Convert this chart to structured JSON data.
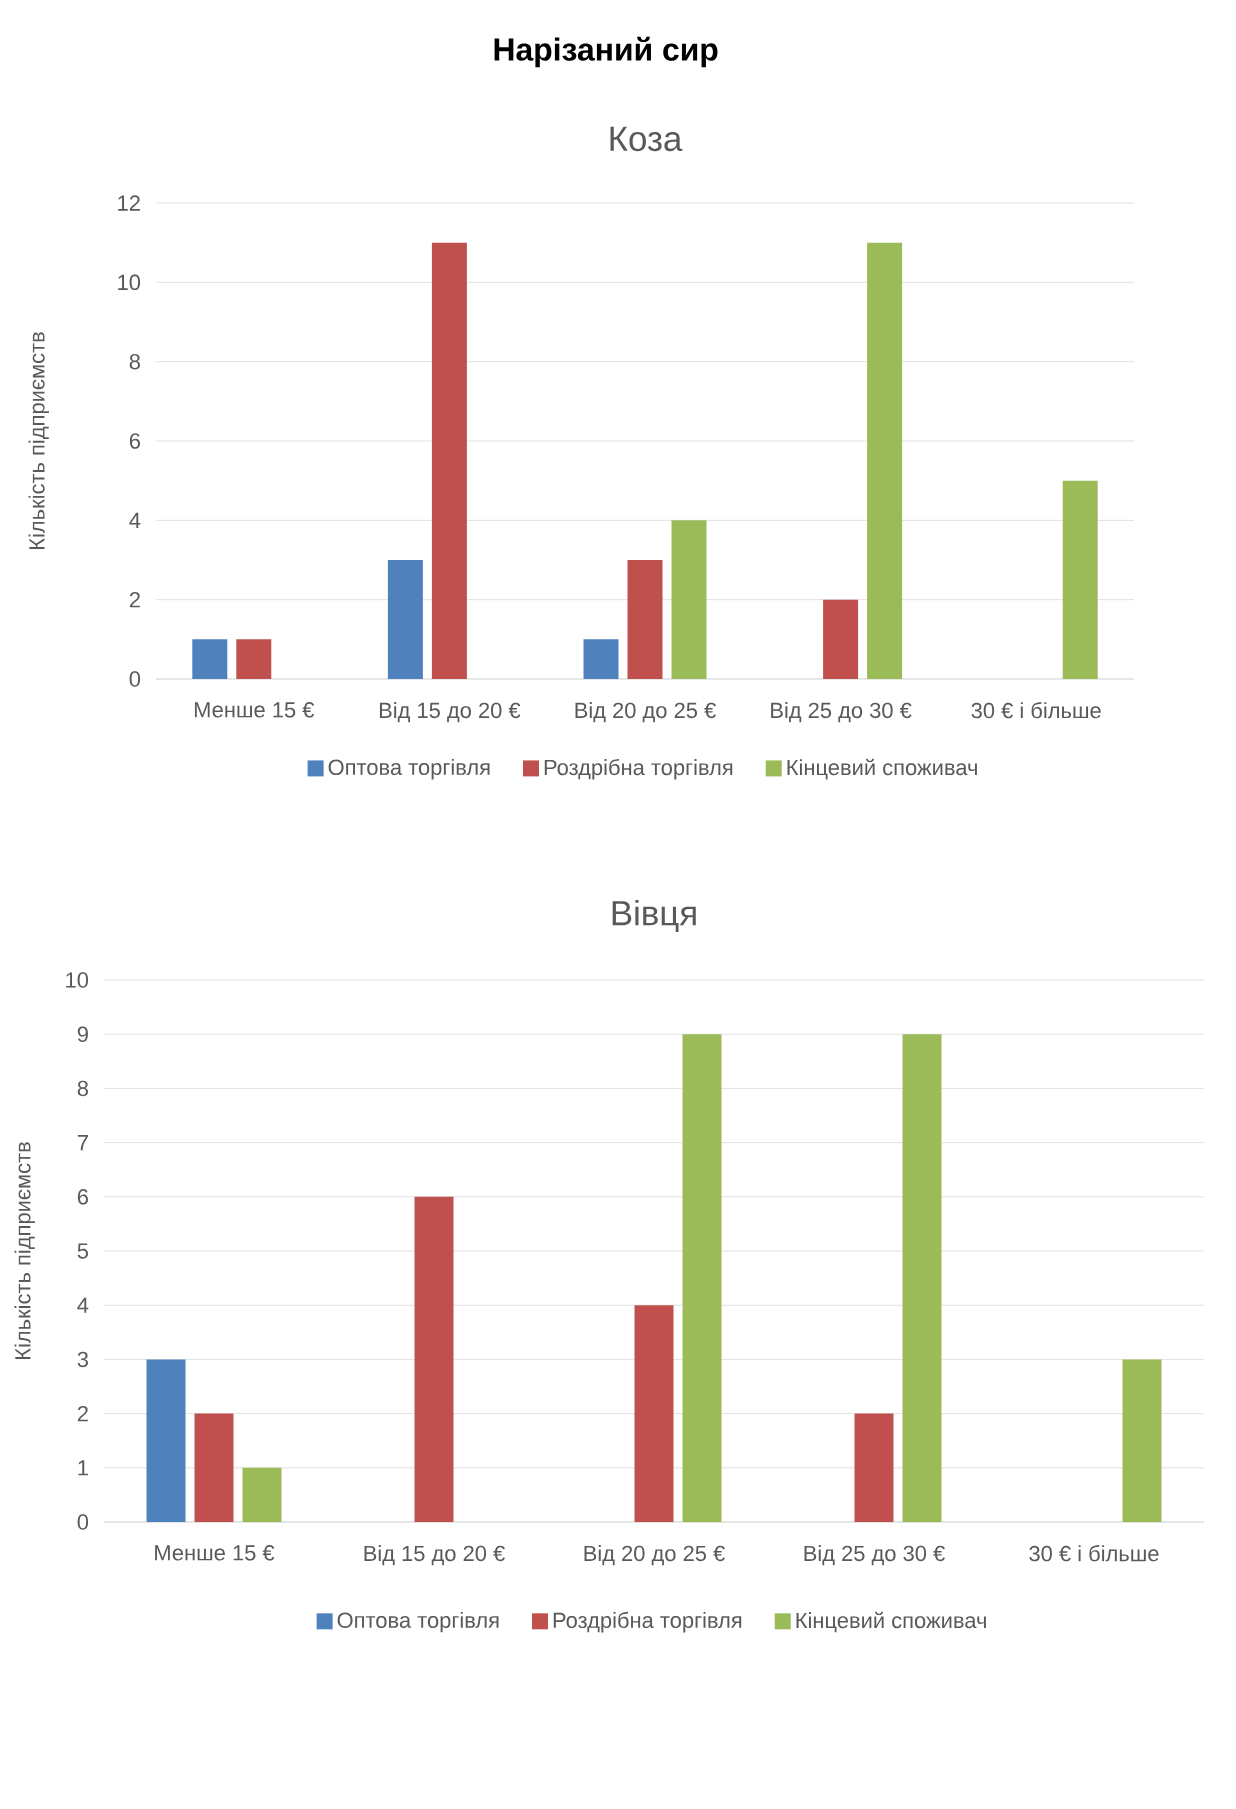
{
  "chart_data": [
    {
      "type": "bar",
      "title": "Нарізаний сир",
      "subtitle": "Коза",
      "ylabel": "Кількість підприємств",
      "categories": [
        "Менше 15 €",
        "Від 15 до 20 €",
        "Від 20 до 25 €",
        "Від 25 до 30 €",
        "30 € і більше"
      ],
      "series": [
        {
          "name": "Оптова торгівля",
          "color": "#4f81bd",
          "values": [
            1,
            3,
            1,
            0,
            0
          ]
        },
        {
          "name": "Роздрібна торгівля",
          "color": "#c0504d",
          "values": [
            1,
            11,
            3,
            2,
            0
          ]
        },
        {
          "name": "Кінцевий споживач",
          "color": "#9bbb59",
          "values": [
            0,
            0,
            4,
            11,
            5
          ]
        }
      ],
      "ylim": [
        0,
        12
      ],
      "yticks": [
        0,
        2,
        4,
        6,
        8,
        10,
        12
      ],
      "grid": "y",
      "legend": "bottom"
    },
    {
      "type": "bar",
      "title": "Вівця",
      "ylabel": "Кількість підприємств",
      "categories": [
        "Менше 15 €",
        "Від 15 до 20 €",
        "Від 20 до 25 €",
        "Від 25 до 30 €",
        "30 € і більше"
      ],
      "series": [
        {
          "name": "Оптова торгівля",
          "color": "#4f81bd",
          "values": [
            3,
            0,
            0,
            0,
            0
          ]
        },
        {
          "name": "Роздрібна торгівля",
          "color": "#c0504d",
          "values": [
            2,
            6,
            4,
            2,
            0
          ]
        },
        {
          "name": "Кінцевий споживач",
          "color": "#9bbb59",
          "values": [
            1,
            0,
            9,
            9,
            3
          ]
        }
      ],
      "ylim": [
        0,
        10
      ],
      "yticks": [
        0,
        1,
        2,
        3,
        4,
        5,
        6,
        7,
        8,
        9,
        10
      ],
      "grid": "y",
      "legend": "bottom"
    }
  ]
}
